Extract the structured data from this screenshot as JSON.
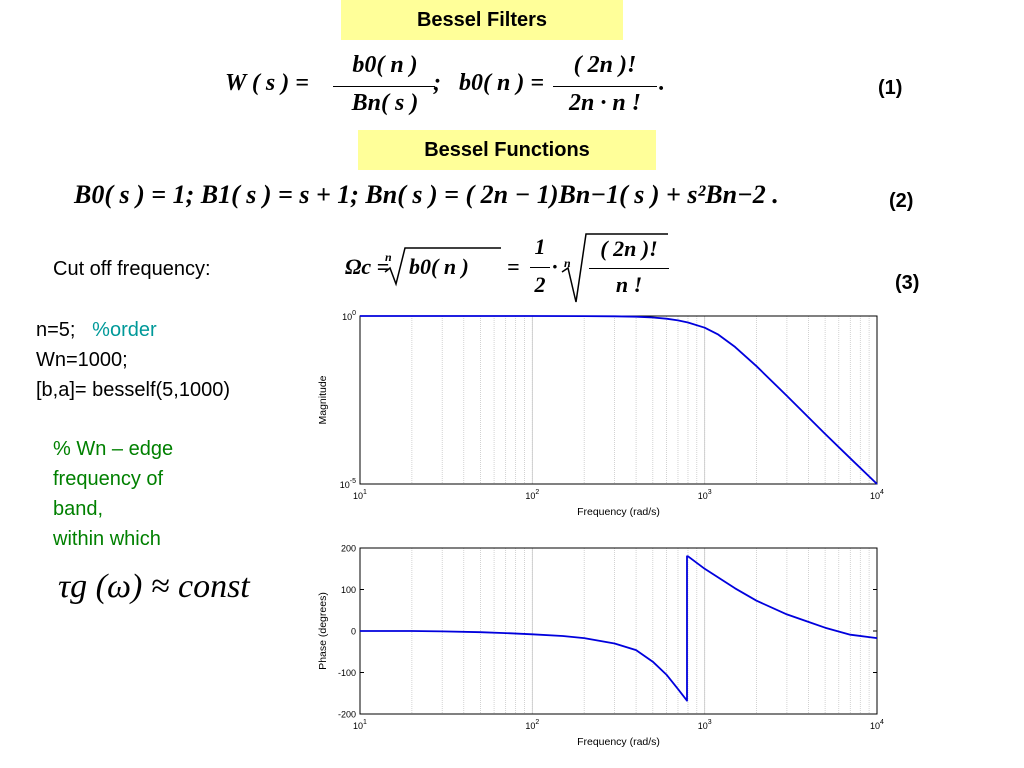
{
  "slide": {
    "title_filters": "Bessel Filters",
    "title_functions": "Bessel Functions",
    "eq_numbers": [
      "(1)",
      "(2)",
      "(3)"
    ],
    "equation1": {
      "lhs": "W ( s ) =",
      "num1": "b0( n )",
      "den1": "Bn( s )",
      "sep": ";   b0( n ) =",
      "num2": "( 2n )!",
      "den2": "2n · n !",
      "end": "."
    },
    "equation2": "B0( s ) = 1;  B1( s ) = s + 1;  Bn( s ) = ( 2n − 1)Bn−1( s ) + s²Bn−2 .",
    "cutoff_label": "Cut off frequency:",
    "equation3": {
      "lhs": "Ωc =",
      "root1": "b0( n )",
      "eq": "=",
      "frac_num": "1",
      "frac_den": "2",
      "dot": "·",
      "root2_num": "( 2n )!",
      "root2_den": "n !",
      "root_index": "n"
    },
    "code": {
      "line1": "n=5;",
      "line1_comment": "%order",
      "line2": "Wn=1000;",
      "line3": "[b,a]= besself(5,1000)"
    },
    "comment": [
      "% Wn – edge",
      "frequency of",
      "band,",
      "within which"
    ],
    "group_delay": "τg (ω) ≈ const"
  },
  "colors": {
    "title_bg": "#ffff99",
    "curve": "#0000dd",
    "comment": "#008000",
    "order_comment": "#009999"
  },
  "chart_data": [
    {
      "type": "line",
      "xscale": "log",
      "yscale": "log",
      "xlim": [
        10,
        10000
      ],
      "ylim": [
        1e-05,
        1
      ],
      "xlabel": "Frequency  (rad/s)",
      "ylabel": "Magnitude",
      "grid": "vertical",
      "xticks": [
        {
          "base": "10",
          "exp": "1"
        },
        {
          "base": "10",
          "exp": "2"
        },
        {
          "base": "10",
          "exp": "3"
        },
        {
          "base": "10",
          "exp": "4"
        }
      ],
      "yticks": [
        {
          "base": "10",
          "exp": "0"
        },
        {
          "base": "10",
          "exp": "-5"
        }
      ],
      "series": [
        {
          "x": [
            10,
            50,
            100,
            200,
            300,
            400,
            500,
            600,
            700,
            800,
            1000,
            1200,
            1500,
            2000,
            3000,
            5000,
            7000,
            10000
          ],
          "y": [
            1,
            1,
            1,
            0.995,
            0.98,
            0.95,
            0.9,
            0.83,
            0.74,
            0.64,
            0.45,
            0.28,
            0.12,
            0.032,
            0.0042,
            0.00031,
            5.8e-05,
            1e-05
          ]
        }
      ]
    },
    {
      "type": "line",
      "xscale": "log",
      "xlim": [
        10,
        10000
      ],
      "ylim": [
        -200,
        200
      ],
      "xlabel": "Frequency  (rad/s)",
      "ylabel": "Phase (degrees)",
      "grid": "vertical",
      "xticks": [
        {
          "base": "10",
          "exp": "1"
        },
        {
          "base": "10",
          "exp": "2"
        },
        {
          "base": "10",
          "exp": "3"
        },
        {
          "base": "10",
          "exp": "4"
        }
      ],
      "yticks": [
        "200",
        "100",
        "0",
        "-100",
        "-200"
      ],
      "ytick_values": [
        200,
        100,
        0,
        -100,
        -200
      ],
      "series": [
        {
          "x": [
            10,
            20,
            30,
            50,
            70,
            100,
            150,
            200,
            300,
            400,
            500,
            600,
            700,
            790,
            800,
            1000,
            1500,
            2000,
            3000,
            4000,
            5000,
            7000,
            10000
          ],
          "y": [
            0,
            0,
            -1,
            -3,
            -5,
            -8,
            -12,
            -17,
            -30,
            -46,
            -74,
            -105,
            -140,
            -168,
            180,
            150,
            103,
            73,
            40,
            22,
            8,
            -9,
            -17
          ]
        }
      ]
    }
  ]
}
